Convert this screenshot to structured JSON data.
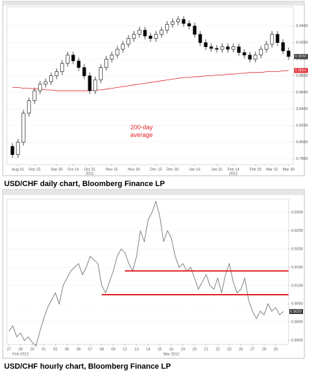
{
  "chart_data": [
    {
      "type": "candlestick",
      "caption": "USD/CHF daily chart, Bloomberg Finance LP",
      "annotation": "200-day average",
      "categories": [
        null,
        "Aug 31",
        null,
        null,
        "Sep 15",
        null,
        null,
        null,
        "Sep 30",
        null,
        null,
        "Oct 14",
        null,
        null,
        "Oct 31",
        null,
        null,
        null,
        "Nov 15",
        null,
        null,
        null,
        "Nov 30",
        null,
        null,
        null,
        "Dec 15",
        null,
        null,
        "Dec 30",
        null,
        null,
        null,
        "Jan 16",
        null,
        null,
        null,
        "Jan 31",
        null,
        null,
        "Feb 14",
        null,
        null,
        null,
        "Feb 29",
        null,
        null,
        "Mar 15",
        null,
        null,
        "Mar 30"
      ],
      "years": [
        null,
        null,
        null,
        null,
        null,
        null,
        null,
        null,
        null,
        null,
        null,
        null,
        null,
        null,
        "2011",
        null,
        null,
        null,
        null,
        null,
        null,
        null,
        null,
        null,
        null,
        null,
        null,
        null,
        null,
        null,
        null,
        null,
        null,
        null,
        null,
        null,
        null,
        null,
        null,
        null,
        "2012",
        null,
        null,
        null,
        null,
        null,
        null,
        null,
        null,
        null,
        null
      ],
      "open": [
        0.795,
        0.785,
        0.8,
        0.835,
        0.85,
        0.862,
        0.87,
        0.873,
        0.88,
        0.885,
        0.895,
        0.905,
        0.898,
        0.89,
        0.88,
        0.862,
        0.875,
        0.89,
        0.9,
        0.905,
        0.912,
        0.918,
        0.925,
        0.93,
        0.935,
        0.928,
        0.925,
        0.93,
        0.935,
        0.942,
        0.945,
        0.948,
        0.943,
        0.94,
        0.93,
        0.92,
        0.915,
        0.913,
        0.912,
        0.915,
        0.912,
        0.915,
        0.908,
        0.905,
        0.9,
        0.905,
        0.912,
        0.918,
        0.93,
        0.92,
        0.91
      ],
      "high": [
        0.799,
        0.804,
        0.839,
        0.854,
        0.866,
        0.874,
        0.877,
        0.884,
        0.889,
        0.899,
        0.909,
        0.909,
        0.902,
        0.894,
        0.884,
        0.879,
        0.894,
        0.904,
        0.909,
        0.916,
        0.922,
        0.929,
        0.934,
        0.939,
        0.939,
        0.932,
        0.934,
        0.939,
        0.946,
        0.949,
        0.952,
        0.952,
        0.947,
        0.944,
        0.934,
        0.924,
        0.919,
        0.917,
        0.919,
        0.919,
        0.919,
        0.919,
        0.912,
        0.909,
        0.909,
        0.916,
        0.922,
        0.934,
        0.934,
        0.924,
        0.914
      ],
      "low": [
        0.781,
        0.781,
        0.796,
        0.831,
        0.846,
        0.858,
        0.866,
        0.869,
        0.876,
        0.881,
        0.891,
        0.894,
        0.886,
        0.876,
        0.858,
        0.858,
        0.871,
        0.886,
        0.896,
        0.901,
        0.908,
        0.914,
        0.921,
        0.926,
        0.924,
        0.921,
        0.921,
        0.926,
        0.931,
        0.938,
        0.941,
        0.939,
        0.936,
        0.926,
        0.916,
        0.911,
        0.909,
        0.908,
        0.908,
        0.908,
        0.908,
        0.904,
        0.901,
        0.896,
        0.896,
        0.901,
        0.908,
        0.914,
        0.916,
        0.906,
        0.8993
      ],
      "close": [
        0.785,
        0.8,
        0.835,
        0.85,
        0.862,
        0.87,
        0.873,
        0.88,
        0.885,
        0.895,
        0.905,
        0.898,
        0.89,
        0.88,
        0.862,
        0.875,
        0.89,
        0.9,
        0.905,
        0.912,
        0.918,
        0.925,
        0.93,
        0.935,
        0.928,
        0.925,
        0.93,
        0.935,
        0.942,
        0.945,
        0.948,
        0.943,
        0.94,
        0.93,
        0.92,
        0.915,
        0.913,
        0.912,
        0.915,
        0.912,
        0.915,
        0.908,
        0.905,
        0.9,
        0.905,
        0.912,
        0.918,
        0.93,
        0.92,
        0.91,
        0.9033
      ],
      "average_values": [
        0.866,
        0.866,
        0.865,
        0.865,
        0.864,
        0.864,
        0.863,
        0.863,
        0.862,
        0.862,
        0.862,
        0.862,
        0.862,
        0.862,
        0.862,
        0.863,
        0.863,
        0.864,
        0.865,
        0.866,
        0.867,
        0.868,
        0.869,
        0.87,
        0.871,
        0.872,
        0.873,
        0.874,
        0.875,
        0.876,
        0.877,
        0.878,
        0.878,
        0.879,
        0.879,
        0.88,
        0.88,
        0.881,
        0.881,
        0.882,
        0.882,
        0.883,
        0.883,
        0.884,
        0.884,
        0.884,
        0.885,
        0.885,
        0.885,
        0.886,
        0.8864
      ],
      "average_color": "#e0262b",
      "annotation_color": "#e0262b",
      "ylim": [
        0.773,
        0.963
      ],
      "yticks": [
        {
          "value": 0.78,
          "label": "0.7800"
        },
        {
          "value": 0.8,
          "label": "0.8000"
        },
        {
          "value": 0.82,
          "label": "0.8200"
        },
        {
          "value": 0.84,
          "label": "0.8400"
        },
        {
          "value": 0.86,
          "label": "0.8600"
        },
        {
          "value": 0.88,
          "label": "0.8800"
        },
        {
          "value": 0.9,
          "label": "0.9000"
        },
        {
          "value": 0.92,
          "label": "0.9200"
        },
        {
          "value": 0.94,
          "label": "0.9400"
        }
      ],
      "grid": true
    },
    {
      "type": "line",
      "caption": "USD/CHF hourly chart, Bloomberg Finance LP",
      "categories": [
        "27",
        null,
        null,
        "28",
        null,
        null,
        "29",
        null,
        null,
        "01",
        null,
        null,
        "02",
        null,
        null,
        "05",
        null,
        null,
        "06",
        null,
        null,
        "07",
        null,
        null,
        "08",
        null,
        null,
        "09",
        null,
        null,
        "12",
        null,
        null,
        "13",
        null,
        null,
        "14",
        null,
        null,
        "15",
        null,
        null,
        "16",
        null,
        null,
        "19",
        null,
        null,
        "20",
        null,
        null,
        "21",
        null,
        null,
        "22",
        null,
        null,
        "23",
        null,
        null,
        "26",
        null,
        null,
        "27",
        null,
        null,
        "28",
        null,
        null,
        "29",
        null,
        null
      ],
      "periods": [
        null,
        null,
        null,
        "Feb 2012",
        null,
        null,
        null,
        null,
        null,
        null,
        null,
        null,
        null,
        null,
        null,
        null,
        null,
        null,
        null,
        null,
        null,
        null,
        null,
        null,
        null,
        null,
        null,
        null,
        null,
        null,
        null,
        null,
        null,
        null,
        null,
        null,
        null,
        null,
        null,
        null,
        null,
        null,
        "Mar 2012",
        null,
        null,
        null,
        null,
        null,
        null,
        null,
        null,
        null,
        null,
        null,
        null,
        null,
        null,
        null,
        null,
        null,
        null,
        null,
        null,
        null,
        null,
        null,
        null,
        null,
        null,
        null,
        null,
        null
      ],
      "values": [
        0.8975,
        0.899,
        0.896,
        0.897,
        0.895,
        0.896,
        0.8945,
        0.8935,
        0.8975,
        0.901,
        0.904,
        0.906,
        0.908,
        0.905,
        0.91,
        0.912,
        0.914,
        0.915,
        0.916,
        0.913,
        0.915,
        0.918,
        0.917,
        0.916,
        0.91,
        0.908,
        0.911,
        0.914,
        0.918,
        0.92,
        0.919,
        0.916,
        0.914,
        0.918,
        0.925,
        0.922,
        0.928,
        0.93,
        0.933,
        0.929,
        0.922,
        0.925,
        0.923,
        0.918,
        0.915,
        0.916,
        0.914,
        0.915,
        0.912,
        0.909,
        0.911,
        0.913,
        0.91,
        0.909,
        0.912,
        0.908,
        0.913,
        0.916,
        0.911,
        0.908,
        0.909,
        0.912,
        0.906,
        0.903,
        0.901,
        0.903,
        0.902,
        0.905,
        0.903,
        0.904,
        0.902,
        0.9029
      ],
      "color": "#777777",
      "hlines": [
        {
          "value": 0.914,
          "color": "#e0262b"
        },
        {
          "value": 0.9075,
          "color": "#e0262b"
        }
      ],
      "ylim": [
        0.8939,
        0.9336
      ],
      "yticks": [
        {
          "value": 0.895,
          "label": "0.8950"
        },
        {
          "value": 0.9,
          "label": "0.9000"
        },
        {
          "value": 0.905,
          "label": "0.9050"
        },
        {
          "value": 0.91,
          "label": "0.9100"
        },
        {
          "value": 0.915,
          "label": "0.9150"
        },
        {
          "value": 0.92,
          "label": "0.9200"
        },
        {
          "value": 0.925,
          "label": "0.9250"
        },
        {
          "value": 0.93,
          "label": "0.9300"
        }
      ],
      "grid": true
    }
  ]
}
